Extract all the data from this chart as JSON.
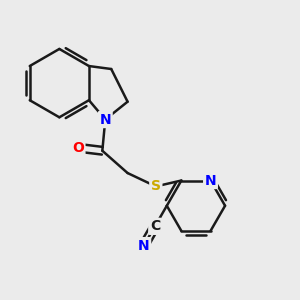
{
  "bg_color": "#ebebeb",
  "bond_color": "#1a1a1a",
  "atom_colors": {
    "N": "#0000ff",
    "O": "#ff0000",
    "S": "#ccaa00",
    "C": "#1a1a1a",
    "CN_N": "#0000ff"
  },
  "figsize": [
    3.0,
    3.0
  ],
  "dpi": 100
}
